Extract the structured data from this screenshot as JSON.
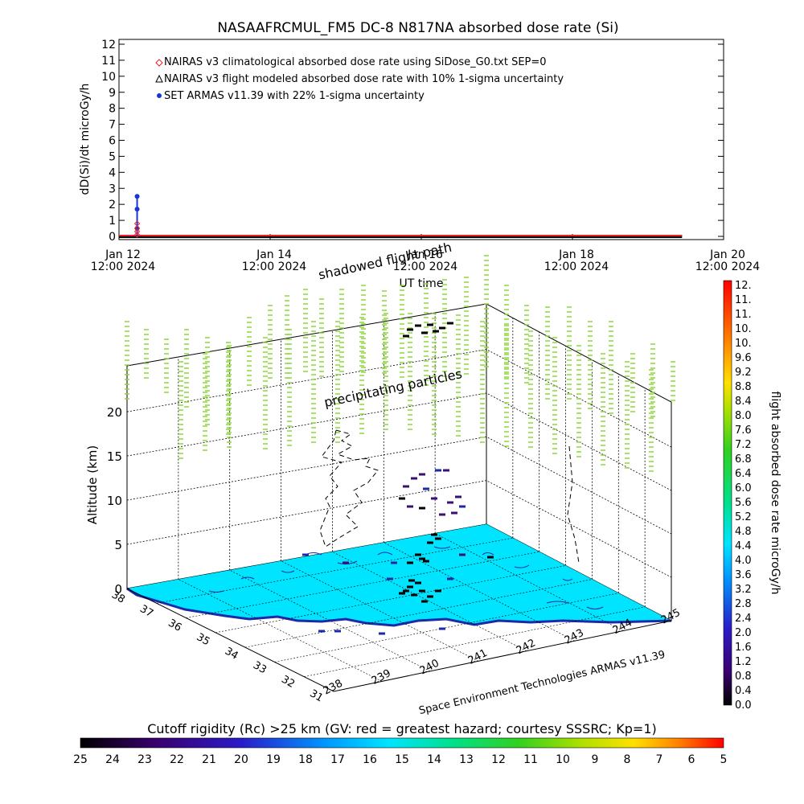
{
  "colors": {
    "nairas_clim": "#e8202a",
    "nairas_flight": "#000000",
    "armas": "#1836d8",
    "ground": "#00e4ff",
    "coast": "#1a2aa8",
    "vertical_marks": "#8ad837",
    "track_marks": "#000000"
  },
  "chart_data": [
    {
      "type": "line",
      "title": "NASAAFRCMUL_FM5 DC-8   N817NA absorbed dose rate (Si)",
      "xlabel": "UT time",
      "ylabel": "dD(Si)/dt microGy/h",
      "ylim": [
        0,
        12
      ],
      "yticks": [
        "0",
        "1",
        "2",
        "3",
        "4",
        "5",
        "6",
        "7",
        "8",
        "9",
        "10",
        "11",
        "12"
      ],
      "xticks": [
        {
          "line1": "Jan 12",
          "line2": "12:00 2024"
        },
        {
          "line1": "Jan 14",
          "line2": "12:00 2024"
        },
        {
          "line1": "Jan 16",
          "line2": "12:00 2024"
        },
        {
          "line1": "Jan 18",
          "line2": "12:00 2024"
        },
        {
          "line1": "Jan 20",
          "line2": "12:00 2024"
        }
      ],
      "x_range_days": [
        0,
        8
      ],
      "legend": [
        {
          "label": "NAIRAS v3 climatological absorbed dose rate using SiDose_G0.txt SEP=0",
          "marker": "diamond",
          "color": "#e8202a"
        },
        {
          "label": "NAIRAS v3 flight modeled absorbed dose rate with 10% 1-sigma uncertainty",
          "marker": "triangle",
          "color": "#000000"
        },
        {
          "label": "SET ARMAS v11.39 with 22% 1-sigma uncertainty",
          "marker": "circle",
          "color": "#1836d8"
        }
      ],
      "legend_position": "top-left",
      "series": [
        {
          "name": "SET ARMAS v11.39 with 22% 1-sigma uncertainty",
          "x": [
            0.24,
            0.24,
            0.24
          ],
          "values": [
            0.5,
            1.7,
            2.5
          ]
        },
        {
          "name": "NAIRAS v3 climatological absorbed dose rate using SiDose_G0.txt SEP=0",
          "x": [
            0.24,
            0.24,
            0.24,
            0.24
          ],
          "values": [
            0.1,
            0.3,
            0.5,
            0.8
          ]
        },
        {
          "name": "NAIRAS v3 flight modeled absorbed dose rate with 10% 1-sigma uncertainty",
          "x": [
            0.0,
            7.45
          ],
          "values": [
            0.0,
            0.0
          ]
        }
      ]
    },
    {
      "type": "scatter",
      "title": "",
      "zlabel": "Altitude (km)",
      "zticks": [
        "0",
        "5",
        "10",
        "15",
        "20"
      ],
      "xticks": [
        "238",
        "239",
        "240",
        "241",
        "242",
        "243",
        "244",
        "245"
      ],
      "yticks": [
        "31",
        "32",
        "33",
        "34",
        "35",
        "36",
        "37",
        "38"
      ],
      "annotations": [
        "shadowed flight path",
        "precipitating particles"
      ],
      "credit": "Space Environment Technologies ARMAS v11.39",
      "colorbar": {
        "label": "flight absorbed dose rate microGy/h",
        "ticks": [
          "12.",
          "11.",
          "11.",
          "10.",
          "10.",
          "9.6",
          "9.2",
          "8.8",
          "8.4",
          "8.0",
          "7.6",
          "7.2",
          "6.8",
          "6.4",
          "6.0",
          "5.6",
          "5.2",
          "4.8",
          "4.4",
          "4.0",
          "3.6",
          "3.2",
          "2.8",
          "2.4",
          "2.0",
          "1.6",
          "1.2",
          "0.8",
          "0.4",
          "0.0"
        ]
      }
    },
    {
      "type": "heatmap",
      "title": "Cutoff rigidity (Rc) >25 km (GV: red = greatest hazard; courtesy SSSRC; Kp=1)",
      "colorbar_ticks": [
        "25",
        "24",
        "23",
        "22",
        "21",
        "20",
        "19",
        "18",
        "17",
        "16",
        "15",
        "14",
        "13",
        "12",
        "11",
        "10",
        "9",
        "8",
        "7",
        "6",
        "5"
      ]
    }
  ]
}
